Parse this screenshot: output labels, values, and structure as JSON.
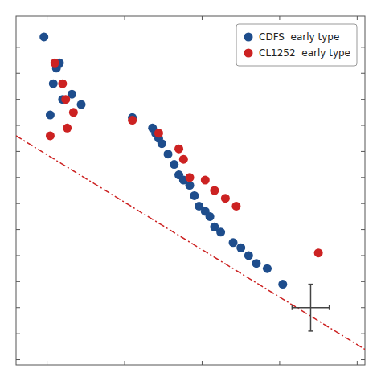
{
  "chart_data": {
    "type": "scatter",
    "series": [
      {
        "name": "CDFS  early type",
        "color": "#1e4d8c",
        "marker": "circle",
        "x": [
          0.48,
          0.56,
          0.54,
          0.6,
          0.52,
          0.58,
          0.66,
          0.72,
          1.05,
          1.18,
          1.2,
          1.22,
          1.24,
          1.28,
          1.32,
          1.35,
          1.38,
          1.42,
          1.45,
          1.48,
          1.52,
          1.55,
          1.58,
          1.62,
          1.7,
          1.75,
          1.8,
          1.85,
          1.92,
          2.02
        ],
        "values": [
          16.8,
          17.4,
          17.7,
          18.0,
          18.3,
          17.3,
          17.9,
          18.1,
          18.35,
          18.55,
          18.65,
          18.75,
          18.85,
          19.05,
          19.25,
          19.45,
          19.55,
          19.65,
          19.85,
          20.05,
          20.15,
          20.25,
          20.45,
          20.55,
          20.75,
          20.85,
          21.0,
          21.15,
          21.25,
          21.55
        ]
      },
      {
        "name": "CL1252  early type",
        "color": "#cc2222",
        "marker": "circle",
        "x": [
          0.55,
          0.6,
          0.62,
          0.67,
          0.63,
          0.52,
          1.05,
          1.22,
          1.35,
          1.38,
          1.42,
          1.52,
          1.58,
          1.65,
          1.72,
          2.25
        ],
        "values": [
          17.3,
          17.7,
          18.0,
          18.25,
          18.55,
          18.7,
          18.4,
          18.65,
          18.95,
          19.15,
          19.5,
          19.55,
          19.75,
          19.9,
          20.05,
          20.95
        ]
      }
    ],
    "lines": [
      {
        "x": [
          0.3,
          2.55
        ],
        "values": [
          18.7,
          22.8
        ],
        "color": "#cc2222",
        "line_style": "dash-dot"
      }
    ],
    "error_bar": {
      "x": 2.2,
      "y": 22.0,
      "x_error": 0.12,
      "y_error": 0.45
    },
    "xlim": [
      0.3,
      2.55
    ],
    "ylim": [
      23.1,
      16.4
    ],
    "xticks": [
      0.5,
      1.0,
      1.5,
      2.0,
      2.5
    ],
    "yticks": [
      17.0,
      17.5,
      18.0,
      18.5,
      19.0,
      19.5,
      20.0,
      20.5,
      21.0,
      21.5,
      22.0,
      22.5,
      23.0
    ],
    "tick_labels": false,
    "grid": false,
    "legend": "upper right"
  }
}
